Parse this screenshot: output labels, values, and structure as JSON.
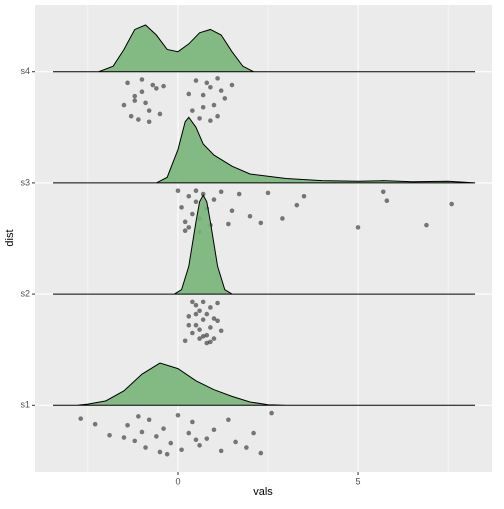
{
  "chart_data": {
    "type": "ridgeline",
    "x_label": "vals",
    "y_label": "dist",
    "categories": [
      "s1",
      "s2",
      "s3",
      "s4"
    ],
    "xlim": [
      -3.97,
      8.72
    ],
    "xticks": [
      0,
      5
    ],
    "ylim": [
      0.4,
      4.6
    ],
    "grid": true,
    "fill_color": "#78b478",
    "line_color": "#000000",
    "point_color": "#000000",
    "ridges": [
      {
        "x": [
          -3.47,
          -2.8,
          -2.5,
          -2,
          -1.5,
          -1,
          -0.5,
          0,
          0.5,
          1,
          1.5,
          2,
          2.5,
          3,
          8.25
        ],
        "height": [
          0,
          0,
          0.01,
          0.04,
          0.13,
          0.28,
          0.38,
          0.33,
          0.22,
          0.14,
          0.08,
          0.03,
          0.005,
          0,
          0
        ]
      },
      {
        "x": [
          -3.47,
          -0.1,
          0.1,
          0.3,
          0.5,
          0.6,
          0.7,
          0.8,
          0.9,
          1.1,
          1.3,
          1.5,
          8.25
        ],
        "height": [
          0,
          0,
          0.04,
          0.25,
          0.65,
          0.83,
          0.89,
          0.83,
          0.65,
          0.25,
          0.04,
          0,
          0
        ]
      },
      {
        "x": [
          -3.47,
          -0.6,
          -0.3,
          0,
          0.2,
          0.3,
          0.5,
          0.7,
          1,
          1.5,
          2,
          3,
          4,
          5,
          5.7,
          6.5,
          7.5,
          8.25
        ],
        "height": [
          0,
          0,
          0.05,
          0.3,
          0.55,
          0.59,
          0.5,
          0.35,
          0.25,
          0.15,
          0.08,
          0.04,
          0.02,
          0.015,
          0.02,
          0.01,
          0.015,
          0
        ]
      },
      {
        "x": [
          -3.47,
          -2.2,
          -1.8,
          -1.5,
          -1.2,
          -0.9,
          -0.6,
          -0.3,
          0,
          0.3,
          0.6,
          0.9,
          1.2,
          1.5,
          1.8,
          2.1,
          8.25
        ],
        "height": [
          0,
          0,
          0.05,
          0.2,
          0.38,
          0.42,
          0.33,
          0.2,
          0.18,
          0.25,
          0.35,
          0.38,
          0.33,
          0.18,
          0.05,
          0,
          0
        ]
      }
    ],
    "points": [
      {
        "x": [
          -2.7,
          -2.3,
          -1.9,
          -1.5,
          -1.4,
          -1.2,
          -1.0,
          -0.9,
          -0.8,
          -0.6,
          -0.5,
          -0.4,
          -0.2,
          0.0,
          0.1,
          0.3,
          0.4,
          0.6,
          0.8,
          1.0,
          1.2,
          1.4,
          1.6,
          1.9,
          2.1,
          2.3,
          2.6,
          -1.1,
          -0.3,
          0.5
        ],
        "y": [
          0.88,
          0.83,
          0.73,
          0.71,
          0.82,
          0.68,
          0.76,
          0.62,
          0.87,
          0.72,
          0.58,
          0.79,
          0.66,
          0.91,
          0.6,
          0.75,
          0.85,
          0.64,
          0.7,
          0.78,
          0.59,
          0.87,
          0.67,
          0.62,
          0.75,
          0.57,
          0.93,
          0.9,
          0.56,
          0.69
        ]
      },
      {
        "x": [
          0.2,
          0.3,
          0.4,
          0.5,
          0.5,
          0.6,
          0.6,
          0.7,
          0.7,
          0.8,
          0.8,
          0.9,
          0.9,
          1.0,
          1.0,
          1.1,
          1.2,
          0.4,
          0.6,
          0.8,
          0.3,
          0.9,
          0.7,
          0.5,
          1.1
        ],
        "y": [
          1.58,
          1.8,
          1.65,
          1.9,
          1.72,
          1.6,
          1.85,
          1.77,
          1.93,
          1.63,
          1.82,
          1.7,
          1.88,
          1.6,
          1.78,
          1.92,
          1.67,
          1.93,
          1.68,
          1.56,
          1.72,
          1.57,
          1.62,
          1.82,
          1.76
        ]
      },
      {
        "x": [
          0.0,
          0.1,
          0.2,
          0.3,
          0.3,
          0.4,
          0.5,
          0.5,
          0.6,
          0.7,
          0.8,
          0.9,
          1.0,
          1.2,
          1.4,
          1.5,
          1.7,
          2.0,
          2.3,
          2.5,
          2.9,
          3.3,
          3.5,
          5.0,
          5.7,
          5.8,
          6.9,
          7.6,
          0.2,
          0.6
        ],
        "y": [
          2.93,
          2.78,
          2.65,
          2.88,
          2.6,
          2.72,
          2.93,
          2.83,
          2.68,
          2.9,
          2.77,
          2.62,
          2.85,
          2.92,
          2.63,
          2.75,
          2.9,
          2.7,
          2.64,
          2.91,
          2.68,
          2.8,
          2.88,
          2.6,
          2.92,
          2.84,
          2.62,
          2.81,
          2.57,
          2.56
        ]
      },
      {
        "x": [
          -1.4,
          -1.2,
          -1.0,
          -0.8,
          -0.6,
          -1.3,
          -0.9,
          -1.1,
          -0.7,
          -1.5,
          -0.5,
          -1.0,
          -0.8,
          -1.2,
          0.3,
          0.5,
          0.7,
          0.9,
          1.1,
          1.3,
          0.6,
          0.8,
          1.0,
          1.2,
          1.5,
          0.4,
          0.9,
          1.1,
          0.7,
          -0.4
        ],
        "y": [
          3.9,
          3.78,
          3.93,
          3.65,
          3.85,
          3.6,
          3.72,
          3.57,
          3.88,
          3.7,
          3.62,
          3.82,
          3.55,
          3.74,
          3.8,
          3.92,
          3.68,
          3.86,
          3.6,
          3.76,
          3.58,
          3.9,
          3.7,
          3.83,
          3.88,
          3.65,
          3.56,
          3.94,
          3.79,
          3.87
        ]
      }
    ]
  }
}
